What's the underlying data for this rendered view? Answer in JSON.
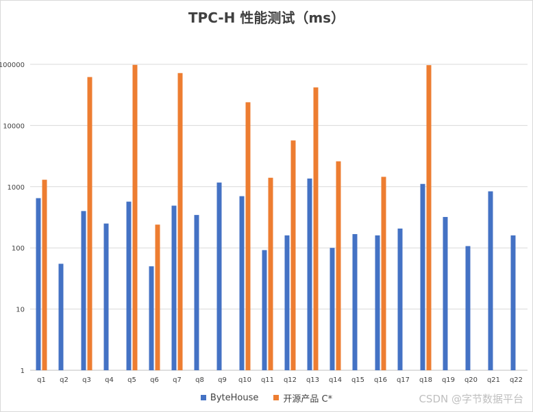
{
  "chart_data": {
    "type": "bar",
    "title": "TPC-H 性能测试（ms）",
    "xlabel": "",
    "ylabel": "",
    "yscale": "log",
    "ylim": [
      1,
      100000
    ],
    "ytick_labels": [
      "1",
      "10",
      "100",
      "1000",
      "10000",
      "100000"
    ],
    "grid": true,
    "legend_position": "bottom",
    "categories": [
      "q1",
      "q2",
      "q3",
      "q4",
      "q5",
      "q6",
      "q7",
      "q8",
      "q9",
      "q10",
      "q11",
      "q12",
      "q13",
      "q14",
      "q15",
      "q16",
      "q17",
      "q18",
      "q19",
      "q20",
      "q21",
      "q22"
    ],
    "series": [
      {
        "name": "ByteHouse",
        "color": "#4472c4",
        "values": [
          650,
          55,
          400,
          250,
          570,
          50,
          490,
          345,
          1170,
          700,
          92,
          160,
          1360,
          100,
          168,
          160,
          207,
          1110,
          320,
          107,
          840,
          160
        ]
      },
      {
        "name": "开源产品 C*",
        "color": "#ed7d31",
        "values": [
          1300,
          null,
          62000,
          null,
          98000,
          240,
          72000,
          null,
          null,
          24000,
          1400,
          5700,
          42000,
          2600,
          null,
          1450,
          null,
          97000,
          null,
          null,
          null,
          null
        ]
      }
    ]
  },
  "watermark": "CSDN @字节数据平台"
}
